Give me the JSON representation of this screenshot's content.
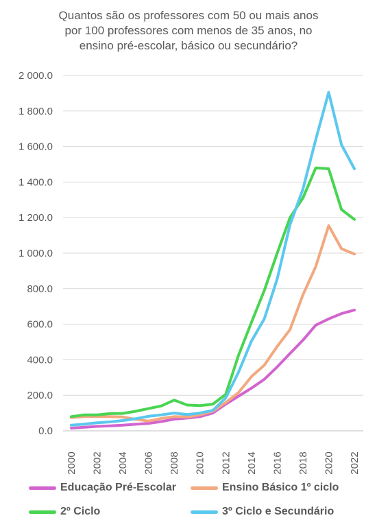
{
  "chart_data": {
    "type": "line",
    "title_lines": [
      "Quantos são os professores com 50 ou mais anos",
      "por 100 professores com menos de 35 anos, no",
      "ensino pré-escolar, básico ou secundário?"
    ],
    "xlabel": "",
    "ylabel": "",
    "x": [
      2000,
      2001,
      2002,
      2003,
      2004,
      2005,
      2006,
      2007,
      2008,
      2009,
      2010,
      2011,
      2012,
      2013,
      2014,
      2015,
      2016,
      2017,
      2018,
      2019,
      2020,
      2021,
      2022
    ],
    "x_tick_labels": [
      "2000",
      "2002",
      "2004",
      "2006",
      "2008",
      "2010",
      "2012",
      "2014",
      "2016",
      "2018",
      "2020",
      "2022"
    ],
    "ylim": [
      0,
      2000
    ],
    "y_tick_labels": [
      "0.0",
      "200.0",
      "400.0",
      "600.0",
      "800.0",
      "1 000.0",
      "1 200.0",
      "1 400.0",
      "1 600.0",
      "1 800.0",
      "2 000.0"
    ],
    "grid": true,
    "legend_position": "bottom",
    "series": [
      {
        "name": "Educação Pré-Escolar",
        "color": "#d264cf",
        "values": [
          15,
          20,
          25,
          28,
          32,
          37,
          42,
          52,
          66,
          72,
          80,
          100,
          150,
          195,
          240,
          290,
          360,
          435,
          510,
          595,
          630,
          660,
          680
        ]
      },
      {
        "name": "Ensino Básico 1º ciclo",
        "color": "#f2a97f",
        "values": [
          75,
          80,
          80,
          80,
          78,
          65,
          55,
          70,
          80,
          78,
          90,
          110,
          160,
          215,
          305,
          370,
          475,
          570,
          765,
          925,
          1155,
          1025,
          995
        ]
      },
      {
        "name": "2º Ciclo",
        "color": "#49d452",
        "values": [
          80,
          90,
          90,
          97,
          98,
          110,
          125,
          140,
          173,
          145,
          142,
          150,
          205,
          425,
          610,
          790,
          1000,
          1200,
          1310,
          1480,
          1475,
          1245,
          1190
        ]
      },
      {
        "name": "3º Ciclo e Secundário",
        "color": "#5bc8ee",
        "values": [
          32,
          38,
          45,
          50,
          58,
          68,
          82,
          90,
          100,
          92,
          100,
          115,
          185,
          330,
          505,
          630,
          855,
          1160,
          1360,
          1640,
          1905,
          1610,
          1475
        ]
      }
    ]
  }
}
